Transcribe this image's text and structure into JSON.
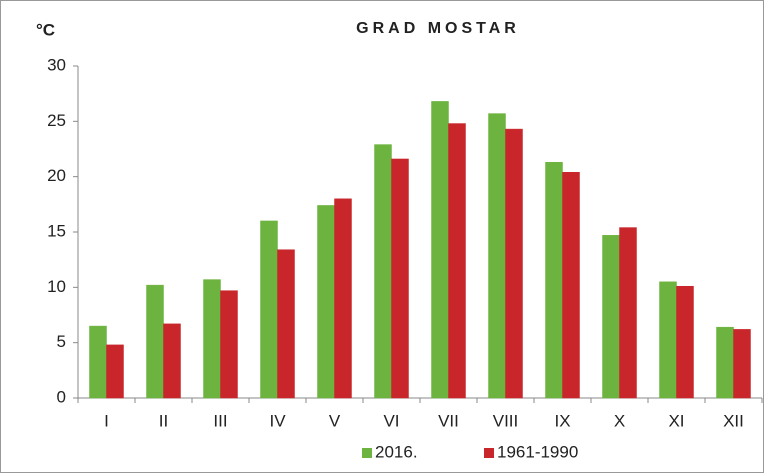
{
  "chart_data": {
    "type": "bar",
    "title": "GRAD MOSTAR",
    "y_label": "°C",
    "categories": [
      "I",
      "II",
      "III",
      "IV",
      "V",
      "VI",
      "VII",
      "VIII",
      "IX",
      "X",
      "XI",
      "XII"
    ],
    "series": [
      {
        "name": "2016.",
        "color": "#6db33f",
        "values": [
          6.5,
          10.2,
          10.7,
          16.0,
          17.4,
          22.9,
          26.8,
          25.7,
          21.3,
          14.7,
          10.5,
          6.4
        ]
      },
      {
        "name": "1961-1990",
        "color": "#c8262b",
        "values": [
          4.8,
          6.7,
          9.7,
          13.4,
          18.0,
          21.6,
          24.8,
          24.3,
          20.4,
          15.4,
          10.1,
          6.2
        ]
      }
    ],
    "ylim": [
      0,
      30
    ],
    "yticks": [
      0,
      5,
      10,
      15,
      20,
      25,
      30
    ],
    "legend": "bottom"
  }
}
